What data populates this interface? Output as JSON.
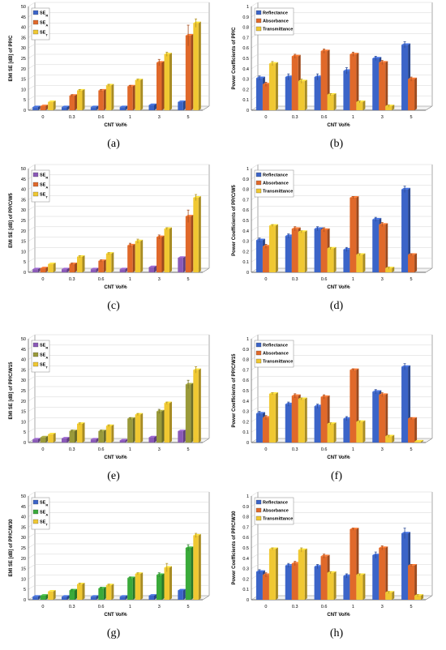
{
  "colors": {
    "blue": "#3b64c8",
    "orange": "#e0692a",
    "yellow": "#f0c832",
    "olive": "#9a9a3a",
    "green": "#3aaa3a",
    "purple": "#8a5ab8",
    "grid": "#d4d4d4",
    "axis": "#555555"
  },
  "chart_data": [
    {
      "type": "bar",
      "panel_label": "(a)",
      "ylabel": "EMI SE [dB] of PP/C",
      "xlabel": "CNT Vol%",
      "categories": [
        "0",
        "0.3",
        "0.6",
        "1",
        "3",
        "5"
      ],
      "ylim": [
        0,
        50
      ],
      "yticks": [
        0,
        5,
        10,
        15,
        20,
        25,
        30,
        35,
        40,
        45,
        50
      ],
      "legend": {
        "position": "top-left",
        "entries": [
          "SE_R",
          "SE_A",
          "SE_T"
        ]
      },
      "series": [
        {
          "name": "SE_R",
          "color_key": "blue",
          "values": [
            1.5,
            1.5,
            1.5,
            1.5,
            2.5,
            4
          ]
        },
        {
          "name": "SE_A",
          "color_key": "orange",
          "values": [
            2,
            7,
            9.5,
            11.5,
            23,
            36
          ]
        },
        {
          "name": "SE_T",
          "color_key": "yellow",
          "values": [
            4,
            9.5,
            12,
            14.5,
            27,
            42
          ]
        }
      ],
      "errors": [
        [
          0,
          0,
          0,
          0,
          0,
          0
        ],
        [
          0,
          0.5,
          0.5,
          0.5,
          1.5,
          5
        ],
        [
          0,
          0.5,
          0.5,
          0.5,
          1,
          2
        ]
      ]
    },
    {
      "type": "bar",
      "panel_label": "(b)",
      "ylabel": "Power Coefficients of PP/C",
      "xlabel": "CNT Vol%",
      "categories": [
        "0",
        "0.3",
        "0.6",
        "1",
        "3",
        "5"
      ],
      "ylim": [
        0,
        1
      ],
      "yticks": [
        0,
        0.1,
        0.2,
        0.3,
        0.4,
        0.5,
        0.6,
        0.7,
        0.8,
        0.9,
        1
      ],
      "legend": {
        "position": "top-left",
        "entries": [
          "Reflectance",
          "Absorbance",
          "Transmittance"
        ]
      },
      "series": [
        {
          "name": "Reflectance",
          "color_key": "blue",
          "values": [
            0.31,
            0.32,
            0.32,
            0.38,
            0.5,
            0.63
          ]
        },
        {
          "name": "Absorbance",
          "color_key": "orange",
          "values": [
            0.25,
            0.52,
            0.57,
            0.54,
            0.46,
            0.3
          ]
        },
        {
          "name": "Transmittance",
          "color_key": "yellow",
          "values": [
            0.45,
            0.28,
            0.15,
            0.08,
            0.04,
            0.0
          ]
        }
      ],
      "errors": [
        [
          0.02,
          0.03,
          0.03,
          0.03,
          0.02,
          0.03
        ],
        [
          0.02,
          0.02,
          0.02,
          0.02,
          0.02,
          0.02
        ],
        [
          0.02,
          0.02,
          0.01,
          0.01,
          0.01,
          0
        ]
      ]
    },
    {
      "type": "bar",
      "panel_label": "(c)",
      "ylabel": "EMI SE [dB] of PP/C/W5",
      "xlabel": "CNT Vol%",
      "categories": [
        "0",
        "0.3",
        "0.6",
        "1",
        "3",
        "5"
      ],
      "ylim": [
        0,
        50
      ],
      "yticks": [
        0,
        5,
        10,
        15,
        20,
        25,
        30,
        35,
        40,
        45,
        50
      ],
      "legend": {
        "position": "top-left",
        "entries": [
          "SE_R",
          "SE_A",
          "SE_T"
        ]
      },
      "series": [
        {
          "name": "SE_R",
          "color_key": "purple",
          "values": [
            1.5,
            1.5,
            1.5,
            1.5,
            2.5,
            7
          ]
        },
        {
          "name": "SE_A",
          "color_key": "orange",
          "values": [
            2,
            4,
            5.5,
            13,
            17,
            27
          ]
        },
        {
          "name": "SE_T",
          "color_key": "yellow",
          "values": [
            4,
            7.5,
            9,
            15,
            21,
            36
          ]
        }
      ],
      "errors": [
        [
          0,
          0,
          0,
          0,
          0,
          0
        ],
        [
          0,
          0.5,
          0.5,
          1,
          1,
          3
        ],
        [
          0,
          0.5,
          0.5,
          1,
          0.5,
          1.5
        ]
      ]
    },
    {
      "type": "bar",
      "panel_label": "(d)",
      "ylabel": "Power Coefficients of PP/C/W5",
      "xlabel": "CNT Vol%",
      "categories": [
        "0",
        "0.3",
        "0.6",
        "1",
        "3",
        "5"
      ],
      "ylim": [
        0,
        1
      ],
      "yticks": [
        0,
        0.1,
        0.2,
        0.3,
        0.4,
        0.5,
        0.6,
        0.7,
        0.8,
        0.9,
        1
      ],
      "legend": {
        "position": "top-left",
        "entries": [
          "Reflectance",
          "Absorbance",
          "Transmittance"
        ]
      },
      "series": [
        {
          "name": "Reflectance",
          "color_key": "blue",
          "values": [
            0.31,
            0.35,
            0.42,
            0.22,
            0.51,
            0.8
          ]
        },
        {
          "name": "Absorbance",
          "color_key": "orange",
          "values": [
            0.25,
            0.42,
            0.41,
            0.72,
            0.46,
            0.17
          ]
        },
        {
          "name": "Transmittance",
          "color_key": "yellow",
          "values": [
            0.45,
            0.39,
            0.23,
            0.17,
            0.04,
            0.0
          ]
        }
      ],
      "errors": [
        [
          0.02,
          0.02,
          0.02,
          0.02,
          0.02,
          0.03
        ],
        [
          0.02,
          0.02,
          0.02,
          0.01,
          0.02,
          0.01
        ],
        [
          0.01,
          0.01,
          0.01,
          0.01,
          0.01,
          0
        ]
      ]
    },
    {
      "type": "bar",
      "panel_label": "(e)",
      "ylabel": "EMI SE [dB] of PP/C/W15",
      "xlabel": "CNT Vol%",
      "categories": [
        "0",
        "0.3",
        "0.6",
        "1",
        "3",
        "5"
      ],
      "ylim": [
        0,
        50
      ],
      "yticks": [
        0,
        5,
        10,
        15,
        20,
        25,
        30,
        35,
        40,
        45,
        50
      ],
      "legend": {
        "position": "top-left",
        "entries": [
          "SE_R",
          "SE_A",
          "SE_T"
        ]
      },
      "series": [
        {
          "name": "SE_R",
          "color_key": "purple",
          "values": [
            1.5,
            2,
            1.5,
            1,
            2.5,
            5.5
          ]
        },
        {
          "name": "SE_A",
          "color_key": "olive",
          "values": [
            2.5,
            5.5,
            5.5,
            11.5,
            15,
            28
          ]
        },
        {
          "name": "SE_T",
          "color_key": "yellow",
          "values": [
            4,
            9,
            8,
            13.5,
            19,
            35
          ]
        }
      ],
      "errors": [
        [
          0,
          0,
          0,
          0,
          0,
          0
        ],
        [
          0,
          0.5,
          0.5,
          0.5,
          1,
          2
        ],
        [
          0,
          0.5,
          0.5,
          0.5,
          0.5,
          1.5
        ]
      ]
    },
    {
      "type": "bar",
      "panel_label": "(f)",
      "ylabel": "Power Coefficients of PP/C/W15",
      "xlabel": "CNT Vol%",
      "categories": [
        "0",
        "0.3",
        "0.6",
        "1",
        "3",
        "5"
      ],
      "ylim": [
        0,
        1
      ],
      "yticks": [
        0,
        0.1,
        0.2,
        0.3,
        0.4,
        0.5,
        0.6,
        0.7,
        0.8,
        0.9,
        1
      ],
      "legend": {
        "position": "top-left",
        "entries": [
          "Reflectance",
          "Absorbance",
          "Transmittance"
        ]
      },
      "series": [
        {
          "name": "Reflectance",
          "color_key": "blue",
          "values": [
            0.28,
            0.37,
            0.35,
            0.23,
            0.49,
            0.73
          ]
        },
        {
          "name": "Absorbance",
          "color_key": "orange",
          "values": [
            0.24,
            0.45,
            0.44,
            0.7,
            0.46,
            0.23
          ]
        },
        {
          "name": "Transmittance",
          "color_key": "yellow",
          "values": [
            0.47,
            0.42,
            0.18,
            0.2,
            0.06,
            0.01
          ]
        }
      ],
      "errors": [
        [
          0.02,
          0.02,
          0.02,
          0.02,
          0.02,
          0.03
        ],
        [
          0.02,
          0.02,
          0.02,
          0.01,
          0.02,
          0.01
        ],
        [
          0.01,
          0.01,
          0.01,
          0.01,
          0.01,
          0
        ]
      ]
    },
    {
      "type": "bar",
      "panel_label": "(g)",
      "ylabel": "EMI SE [dB] of PP/C/W30",
      "xlabel": "CNT Vol%",
      "categories": [
        "0",
        "0.3",
        "0.6",
        "1",
        "3",
        "5"
      ],
      "ylim": [
        0,
        50
      ],
      "yticks": [
        0,
        5,
        10,
        15,
        20,
        25,
        30,
        35,
        40,
        45,
        50
      ],
      "legend": {
        "position": "top-left",
        "entries": [
          "SE_R",
          "SE_A",
          "SE_T"
        ]
      },
      "series": [
        {
          "name": "SE_R",
          "color_key": "blue",
          "values": [
            1.5,
            1.5,
            1.5,
            1.5,
            2,
            4.5
          ]
        },
        {
          "name": "SE_A",
          "color_key": "green",
          "values": [
            2,
            4.5,
            5.5,
            10.5,
            12,
            25
          ]
        },
        {
          "name": "SE_T",
          "color_key": "yellow",
          "values": [
            4,
            7.5,
            7,
            12.5,
            15.5,
            31
          ]
        }
      ],
      "errors": [
        [
          0,
          0,
          0,
          0,
          0,
          0
        ],
        [
          0,
          0.5,
          0.5,
          0.5,
          1,
          1.5
        ],
        [
          0,
          0.5,
          0.5,
          0.5,
          2,
          1
        ]
      ]
    },
    {
      "type": "bar",
      "panel_label": "(h)",
      "ylabel": "Power Coefficients of PP/C/W30",
      "xlabel": "CNT Vol%",
      "categories": [
        "0",
        "0.3",
        "0.6",
        "1",
        "3",
        "5"
      ],
      "ylim": [
        0,
        1
      ],
      "yticks": [
        0,
        0.1,
        0.2,
        0.3,
        0.4,
        0.5,
        0.6,
        0.7,
        0.8,
        0.9,
        1
      ],
      "legend": {
        "position": "top-left",
        "entries": [
          "Reflectance",
          "Absorbance",
          "Transmittance"
        ]
      },
      "series": [
        {
          "name": "Reflectance",
          "color_key": "blue",
          "values": [
            0.27,
            0.33,
            0.32,
            0.23,
            0.43,
            0.64
          ]
        },
        {
          "name": "Absorbance",
          "color_key": "orange",
          "values": [
            0.24,
            0.35,
            0.42,
            0.68,
            0.5,
            0.33
          ]
        },
        {
          "name": "Transmittance",
          "color_key": "yellow",
          "values": [
            0.49,
            0.48,
            0.26,
            0.24,
            0.07,
            0.04
          ]
        }
      ],
      "errors": [
        [
          0.02,
          0.02,
          0.02,
          0.02,
          0.03,
          0.05
        ],
        [
          0.02,
          0.02,
          0.02,
          0.01,
          0.02,
          0.01
        ],
        [
          0.01,
          0.02,
          0.01,
          0.01,
          0.01,
          0.01
        ]
      ]
    }
  ]
}
